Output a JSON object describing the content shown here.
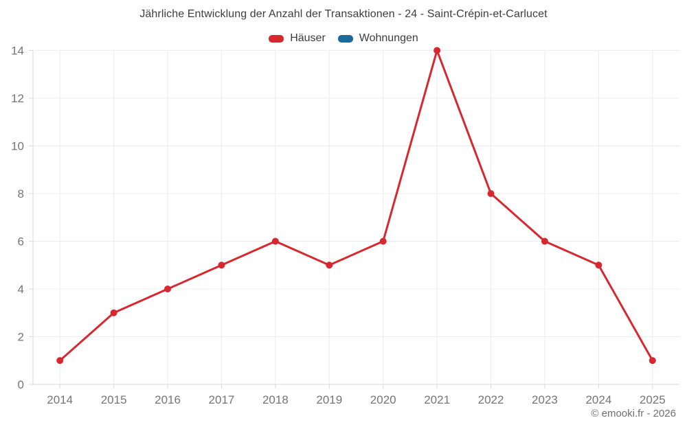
{
  "page": {
    "title": "Jährliche Entwicklung der Anzahl der Transaktionen - 24 - Saint-Crépin-et-Carlucet",
    "attribution": "© emooki.fr - 2026"
  },
  "legend": {
    "items": [
      {
        "label": "Häuser",
        "color": "#d7282f"
      },
      {
        "label": "Wohnungen",
        "color": "#1c699c"
      }
    ]
  },
  "chart_data": {
    "type": "line",
    "title": "Jährliche Entwicklung der Anzahl der Transaktionen - 24 - Saint-Crépin-et-Carlucet",
    "categories": [
      "2014",
      "2015",
      "2016",
      "2017",
      "2018",
      "2019",
      "2020",
      "2021",
      "2022",
      "2023",
      "2024",
      "2025"
    ],
    "series": [
      {
        "name": "Häuser",
        "color": "#d7282f",
        "values": [
          1,
          3,
          4,
          5,
          6,
          5,
          6,
          14,
          8,
          6,
          5,
          1
        ]
      },
      {
        "name": "Wohnungen",
        "color": "#1c699c",
        "values": []
      }
    ],
    "xlabel": "",
    "ylabel": "",
    "ylim": [
      0,
      14
    ],
    "ytick_step": 2,
    "grid": true,
    "legend_position": "top",
    "line_width": 3,
    "point_radius": 5
  },
  "style": {
    "tick_label_color": "#757575",
    "grid_color": "#ececec",
    "axis_color": "#d9d9d9",
    "title_color": "#3d3d3d",
    "background": "#ffffff"
  }
}
